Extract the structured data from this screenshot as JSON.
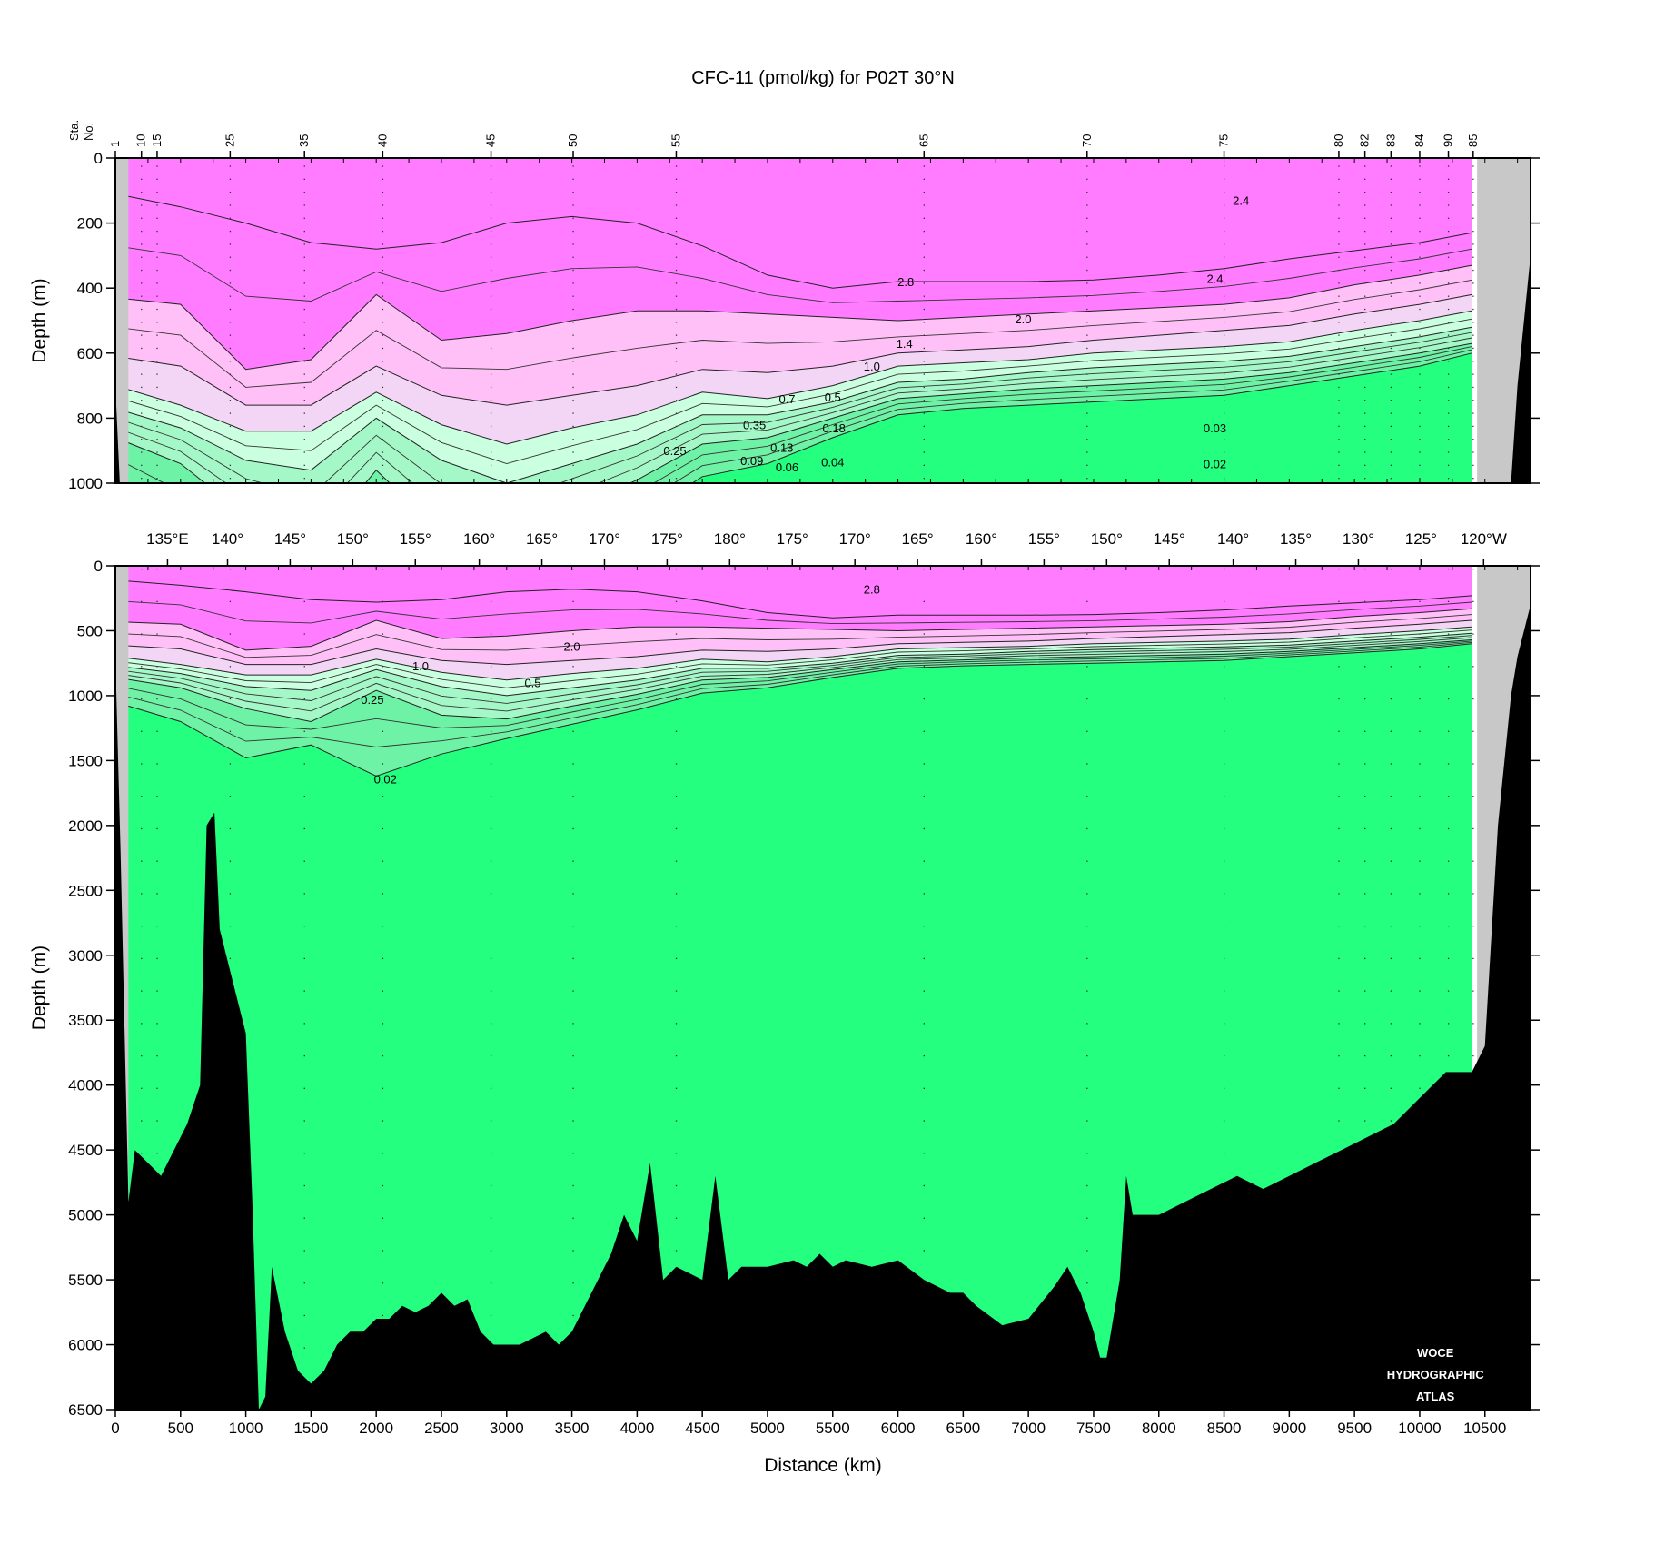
{
  "chart_data": {
    "type": "contour_section",
    "title": "CFC-11 (pmol/kg) for P02T 30°N",
    "xlabel": "Distance (km)",
    "ylabel": "Depth (m)",
    "xlim": [
      0,
      10850
    ],
    "station_axis": {
      "label_top": "Sta.",
      "label_bottom": "No.",
      "stations": [
        {
          "no": "1",
          "km": 0
        },
        {
          "no": "10",
          "km": 200
        },
        {
          "no": "15",
          "km": 320
        },
        {
          "no": "25",
          "km": 880
        },
        {
          "no": "35",
          "km": 1450
        },
        {
          "no": "40",
          "km": 2050
        },
        {
          "no": "45",
          "km": 2880
        },
        {
          "no": "50",
          "km": 3510
        },
        {
          "no": "55",
          "km": 4300
        },
        {
          "no": "65",
          "km": 6200
        },
        {
          "no": "70",
          "km": 7450
        },
        {
          "no": "75",
          "km": 8500
        },
        {
          "no": "80",
          "km": 9380
        },
        {
          "no": "82",
          "km": 9580
        },
        {
          "no": "83",
          "km": 9780
        },
        {
          "no": "84",
          "km": 10000
        },
        {
          "no": "90",
          "km": 10220
        },
        {
          "no": "85",
          "km": 10410
        }
      ]
    },
    "longitude_axis": [
      {
        "label": "135°E",
        "km": 400
      },
      {
        "label": "140°",
        "km": 860
      },
      {
        "label": "145°",
        "km": 1340
      },
      {
        "label": "150°",
        "km": 1820
      },
      {
        "label": "155°",
        "km": 2300
      },
      {
        "label": "160°",
        "km": 2790
      },
      {
        "label": "165°",
        "km": 3270
      },
      {
        "label": "170°",
        "km": 3750
      },
      {
        "label": "175°",
        "km": 4230
      },
      {
        "label": "180°",
        "km": 4710
      },
      {
        "label": "175°",
        "km": 5190
      },
      {
        "label": "170°",
        "km": 5670
      },
      {
        "label": "165°",
        "km": 6150
      },
      {
        "label": "160°",
        "km": 6640
      },
      {
        "label": "155°",
        "km": 7120
      },
      {
        "label": "150°",
        "km": 7600
      },
      {
        "label": "145°",
        "km": 8080
      },
      {
        "label": "140°",
        "km": 8570
      },
      {
        "label": "135°",
        "km": 9050
      },
      {
        "label": "130°",
        "km": 9530
      },
      {
        "label": "125°",
        "km": 10010
      },
      {
        "label": "120°W",
        "km": 10490
      }
    ],
    "x_ticks": [
      "0",
      "500",
      "1000",
      "1500",
      "2000",
      "2500",
      "3000",
      "3500",
      "4000",
      "4500",
      "5000",
      "5500",
      "6000",
      "6500",
      "7000",
      "7500",
      "8000",
      "8500",
      "9000",
      "9500",
      "10000",
      "10500"
    ],
    "panels": [
      {
        "name": "upper",
        "ylim": [
          1000,
          0
        ],
        "y_ticks": [
          "0",
          "200",
          "400",
          "600",
          "800",
          "1000"
        ]
      },
      {
        "name": "lower",
        "ylim": [
          6500,
          0
        ],
        "y_ticks": [
          "0",
          "500",
          "1000",
          "1500",
          "2000",
          "2500",
          "3000",
          "3500",
          "4000",
          "4500",
          "5000",
          "5500",
          "6000",
          "6500"
        ]
      }
    ],
    "contour_levels": [
      0.02,
      0.04,
      0.06,
      0.09,
      0.13,
      0.18,
      0.25,
      0.35,
      0.5,
      0.7,
      1.0,
      1.4,
      2.0,
      2.4,
      2.8
    ],
    "color_bands": [
      {
        "range": "> 2.0",
        "color": "#ff7bff"
      },
      {
        "range": "1.0 – 2.0",
        "color": "#ffbff7"
      },
      {
        "range": "0.5 – 1.0",
        "color": "#f3d6f5"
      },
      {
        "range": "0.25 – 0.5",
        "color": "#caffe0"
      },
      {
        "range": "0.09 – 0.25",
        "color": "#a4f8c8"
      },
      {
        "range": "0.02 – 0.09",
        "color": "#6ef2a6"
      },
      {
        "range": "< 0.02",
        "color": "#24ff7f"
      }
    ],
    "contour_depths_profile": {
      "km": [
        0,
        500,
        1000,
        1500,
        2000,
        2500,
        3000,
        3500,
        4000,
        4500,
        5000,
        5500,
        6000,
        6500,
        7000,
        7500,
        8000,
        8500,
        9000,
        9500,
        10000,
        10400
      ],
      "2.8": [
        110,
        150,
        200,
        260,
        280,
        260,
        200,
        180,
        200,
        270,
        360,
        400,
        380,
        380,
        380,
        375,
        360,
        340,
        310,
        285,
        260,
        230
      ],
      "2.0": [
        430,
        450,
        650,
        620,
        420,
        560,
        540,
        500,
        470,
        470,
        480,
        490,
        500,
        490,
        480,
        470,
        460,
        450,
        430,
        390,
        360,
        330
      ],
      "1.0": [
        610,
        640,
        760,
        760,
        640,
        730,
        760,
        730,
        700,
        650,
        660,
        640,
        600,
        590,
        580,
        560,
        545,
        530,
        515,
        480,
        450,
        420
      ],
      "0.5": [
        700,
        760,
        840,
        840,
        720,
        820,
        880,
        830,
        790,
        720,
        740,
        700,
        640,
        630,
        620,
        600,
        590,
        580,
        565,
        530,
        500,
        470
      ],
      "0.25": [
        770,
        830,
        930,
        960,
        800,
        930,
        1000,
        940,
        880,
        790,
        790,
        750,
        690,
        680,
        660,
        645,
        635,
        625,
        610,
        580,
        550,
        520
      ],
      "0.09": [
        860,
        940,
        1100,
        1200,
        960,
        1150,
        1180,
        1080,
        990,
        880,
        860,
        800,
        740,
        725,
        710,
        700,
        690,
        680,
        660,
        630,
        600,
        570
      ],
      "0.02": [
        1050,
        1200,
        1480,
        1380,
        1620,
        1450,
        1330,
        1220,
        1110,
        980,
        940,
        860,
        790,
        770,
        760,
        750,
        740,
        730,
        700,
        670,
        640,
        600
      ]
    },
    "contour_labels": {
      "upper": [
        {
          "text": "2.4",
          "km": 8630,
          "depth": 130
        },
        {
          "text": "2.8",
          "km": 6060,
          "depth": 380
        },
        {
          "text": "2.4",
          "km": 8430,
          "depth": 370
        },
        {
          "text": "2.0",
          "km": 6960,
          "depth": 495
        },
        {
          "text": "1.4",
          "km": 6050,
          "depth": 570
        },
        {
          "text": "1.0",
          "km": 5800,
          "depth": 640
        },
        {
          "text": "0.7",
          "km": 5150,
          "depth": 740
        },
        {
          "text": "0.5",
          "km": 5500,
          "depth": 735
        },
        {
          "text": "0.35",
          "km": 4900,
          "depth": 820
        },
        {
          "text": "0.18",
          "km": 5510,
          "depth": 830
        },
        {
          "text": "0.25",
          "km": 4290,
          "depth": 900
        },
        {
          "text": "0.13",
          "km": 5110,
          "depth": 890
        },
        {
          "text": "0.09",
          "km": 4880,
          "depth": 930
        },
        {
          "text": "0.06",
          "km": 5150,
          "depth": 950
        },
        {
          "text": "0.04",
          "km": 5500,
          "depth": 935
        },
        {
          "text": "0.03",
          "km": 8430,
          "depth": 830
        },
        {
          "text": "0.02",
          "km": 8430,
          "depth": 940
        }
      ],
      "lower": [
        {
          "text": "2.8",
          "km": 5800,
          "depth": 180
        },
        {
          "text": "2.0",
          "km": 3500,
          "depth": 620
        },
        {
          "text": "1.0",
          "km": 2340,
          "depth": 770
        },
        {
          "text": "0.5",
          "km": 3200,
          "depth": 900
        },
        {
          "text": "0.25",
          "km": 1970,
          "depth": 1030
        },
        {
          "text": "0.02",
          "km": 2070,
          "depth": 1640
        }
      ]
    },
    "bottom_depth_profile": {
      "km": [
        0,
        40,
        100,
        150,
        250,
        350,
        450,
        550,
        650,
        700,
        760,
        800,
        900,
        1000,
        1050,
        1100,
        1150,
        1200,
        1300,
        1400,
        1500,
        1600,
        1700,
        1800,
        1900,
        2000,
        2100,
        2200,
        2300,
        2400,
        2500,
        2600,
        2700,
        2800,
        2900,
        3000,
        3100,
        3200,
        3300,
        3400,
        3500,
        3600,
        3700,
        3800,
        3900,
        4000,
        4100,
        4200,
        4300,
        4400,
        4500,
        4600,
        4700,
        4800,
        5000,
        5200,
        5300,
        5400,
        5500,
        5600,
        5800,
        6000,
        6200,
        6400,
        6500,
        6600,
        6800,
        7000,
        7200,
        7300,
        7400,
        7500,
        7550,
        7600,
        7650,
        7700,
        7750,
        7800,
        8000,
        8200,
        8400,
        8600,
        8800,
        9000,
        9200,
        9400,
        9600,
        9800,
        10000,
        10200,
        10400,
        10500,
        10600,
        10700,
        10750,
        10800,
        10850
      ],
      "depth": [
        700,
        2200,
        4900,
        4500,
        4600,
        4700,
        4500,
        4300,
        4000,
        2000,
        1900,
        2800,
        3200,
        3600,
        4900,
        6500,
        6400,
        5400,
        5900,
        6200,
        6300,
        6200,
        6000,
        5900,
        5900,
        5800,
        5800,
        5700,
        5750,
        5700,
        5600,
        5700,
        5650,
        5900,
        6000,
        6000,
        6000,
        5950,
        5900,
        6000,
        5900,
        5700,
        5500,
        5300,
        5000,
        5200,
        4600,
        5500,
        5400,
        5450,
        5500,
        4700,
        5500,
        5400,
        5400,
        5350,
        5400,
        5300,
        5400,
        5350,
        5400,
        5350,
        5500,
        5600,
        5600,
        5700,
        5850,
        5800,
        5550,
        5400,
        5600,
        5900,
        6100,
        6100,
        5800,
        5500,
        4700,
        5000,
        5000,
        4900,
        4800,
        4700,
        4800,
        4700,
        4600,
        4500,
        4400,
        4300,
        4100,
        3900,
        3900,
        3700,
        2000,
        1000,
        700,
        500,
        300
      ]
    },
    "notes": [
      "WOCE",
      "HYDROGRAPHIC",
      "ATLAS"
    ]
  }
}
